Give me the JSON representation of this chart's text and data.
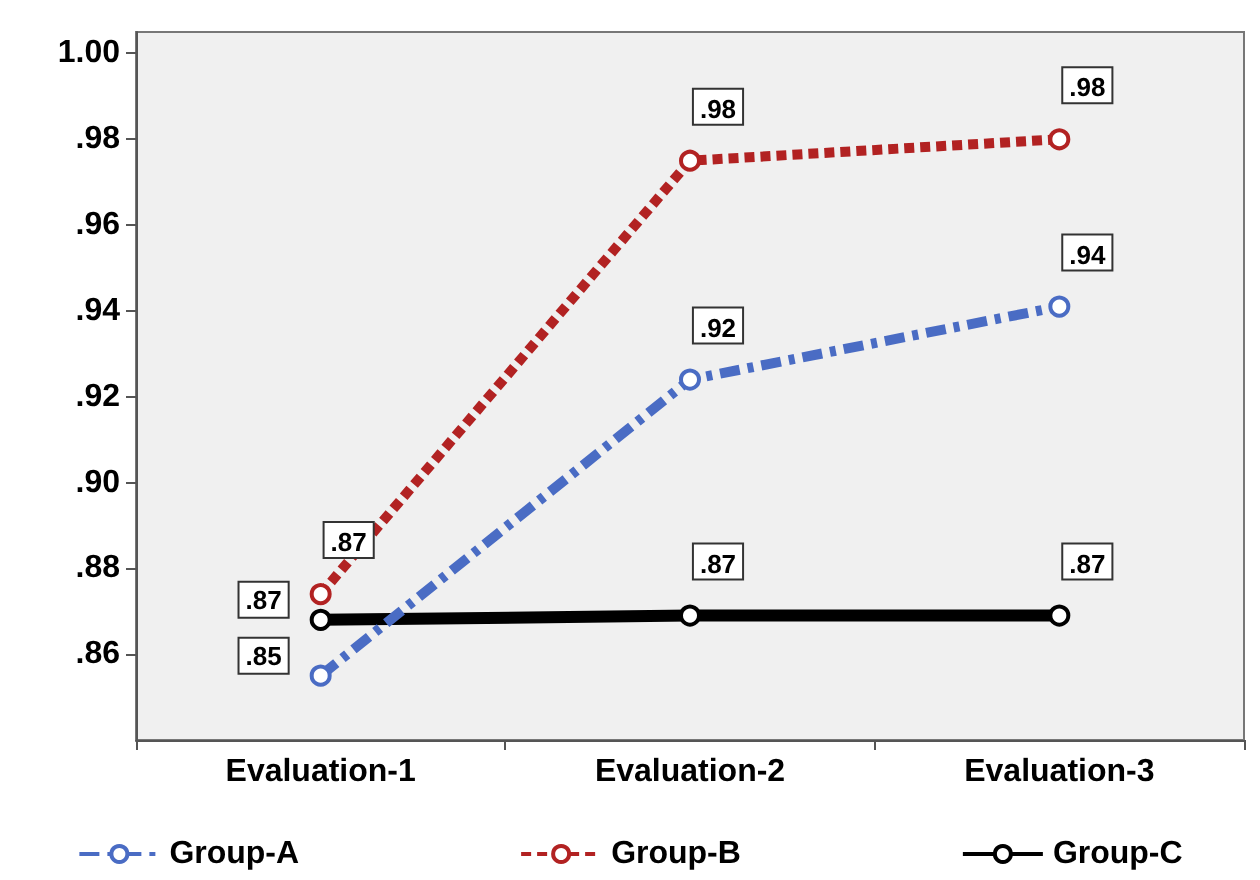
{
  "chart_data": {
    "type": "line",
    "categories": [
      "Evaluation-1",
      "Evaluation-2",
      "Evaluation-3"
    ],
    "series": [
      {
        "name": "Group-A",
        "color": "#4a6cc4",
        "line_style": "dashed",
        "values": [
          0.855,
          0.924,
          0.941
        ],
        "value_labels": [
          ".85",
          ".92",
          ".94"
        ]
      },
      {
        "name": "Group-B",
        "color": "#b22222",
        "line_style": "dotted",
        "values": [
          0.874,
          0.975,
          0.98
        ],
        "value_labels": [
          ".87",
          ".98",
          ".98"
        ]
      },
      {
        "name": "Group-C",
        "color": "#000000",
        "line_style": "solid",
        "values": [
          0.868,
          0.869,
          0.869
        ],
        "value_labels": [
          ".87",
          ".87",
          ".87"
        ]
      }
    ],
    "ylim": [
      0.84,
      1.005
    ],
    "yticks": [
      {
        "value": 0.86,
        "label": ".86"
      },
      {
        "value": 0.88,
        "label": ".88"
      },
      {
        "value": 0.9,
        "label": ".90"
      },
      {
        "value": 0.92,
        "label": ".92"
      },
      {
        "value": 0.94,
        "label": ".94"
      },
      {
        "value": 0.96,
        "label": ".96"
      },
      {
        "value": 0.98,
        "label": ".98"
      },
      {
        "value": 1.0,
        "label": "1.00"
      }
    ],
    "marker": "circle",
    "grid": false,
    "legend": "bottom"
  }
}
